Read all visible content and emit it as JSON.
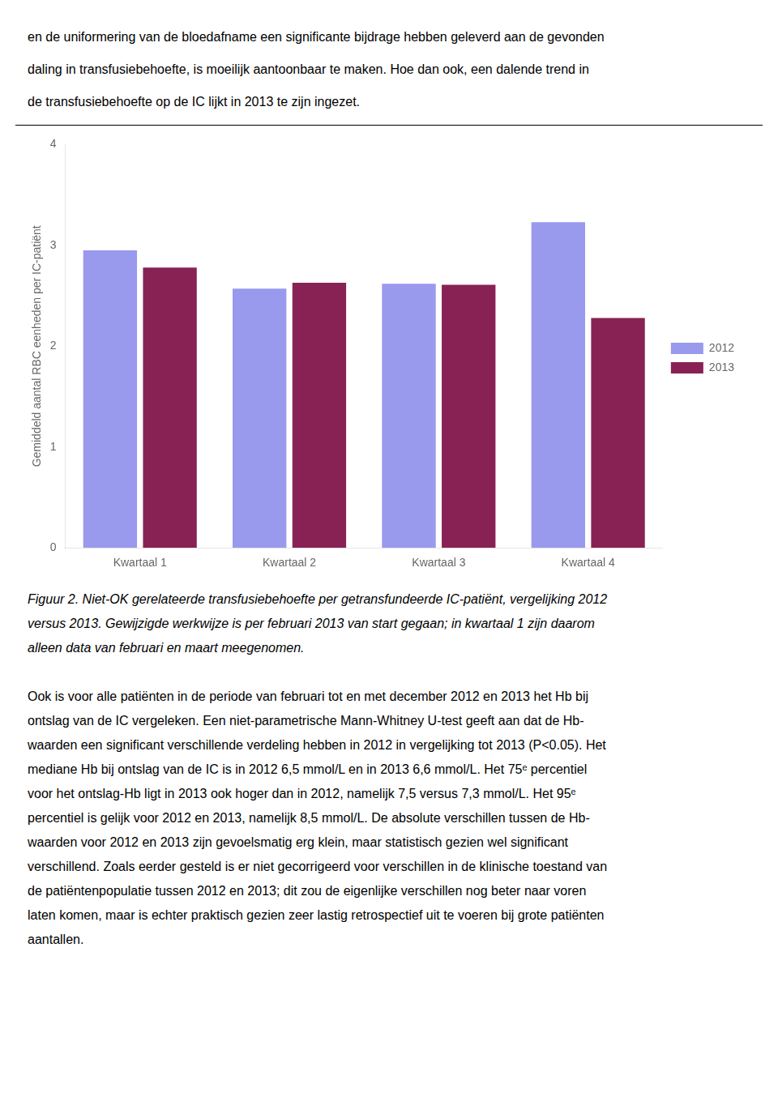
{
  "text_above": [
    "en de uniformering van de bloedafname een significante bijdrage hebben geleverd aan de gevonden",
    "daling in transfusiebehoefte, is moeilijk aantoonbaar te maken. Hoe dan ook, een dalende trend in",
    "de transfusiebehoefte op de IC lijkt in 2013 te zijn ingezet."
  ],
  "chart_data": {
    "type": "bar",
    "categories": [
      "Kwartaal 1",
      "Kwartaal 2",
      "Kwartaal 3",
      "Kwartaal 4"
    ],
    "series": [
      {
        "name": "2012",
        "color": "#9999ee",
        "values": [
          2.95,
          2.57,
          2.62,
          3.23
        ]
      },
      {
        "name": "2013",
        "color": "#882255",
        "values": [
          2.78,
          2.63,
          2.61,
          2.28
        ]
      }
    ],
    "y_label": "Gemiddeld aantal RBC eenheden per IC-patiënt",
    "ylim": [
      0,
      4
    ],
    "yticks": [
      0,
      1,
      2,
      3,
      4
    ],
    "grid": false,
    "legend": "right",
    "caption": [
      "Figuur 2. Niet-OK gerelateerde transfusiebehoefte per getransfundeerde IC-patiënt, vergelijking 2012",
      "versus 2013. Gewijzigde werkwijze is per februari 2013 van start gegaan; in kwartaal 1 zijn daarom",
      "alleen data van februari en maart meegenomen."
    ]
  },
  "text_below": [
    "Ook is voor alle patiënten in de periode van februari tot en met december 2012 en 2013 het Hb bij",
    "ontslag van de IC vergeleken. Een niet-parametrische Mann-Whitney U-test geeft aan dat de Hb-",
    "waarden een significant verschillende verdeling hebben in 2012 in vergelijking tot 2013 (P<0.05). Het",
    "mediane Hb bij ontslag van de IC is in 2012 6,5 mmol/L en in 2013 6,6 mmol/L. Het 75ᵉ percentiel",
    "voor het ontslag-Hb ligt in 2013 ook hoger dan in 2012, namelijk 7,5 versus 7,3 mmol/L. Het 95ᵉ",
    "percentiel is gelijk voor 2012 en 2013, namelijk 8,5 mmol/L. De absolute verschillen tussen de Hb-",
    "waarden voor 2012 en 2013 zijn gevoelsmatig erg klein, maar statistisch gezien wel significant",
    "verschillend. Zoals eerder gesteld is er niet gecorrigeerd voor verschillen in de klinische toestand van",
    "de patiëntenpopulatie tussen 2012 en 2013; dit zou de eigenlijke verschillen nog beter naar voren",
    "laten komen, maar is echter praktisch gezien zeer lastig retrospectief uit te voeren bij grote patiënten",
    "aantallen."
  ]
}
